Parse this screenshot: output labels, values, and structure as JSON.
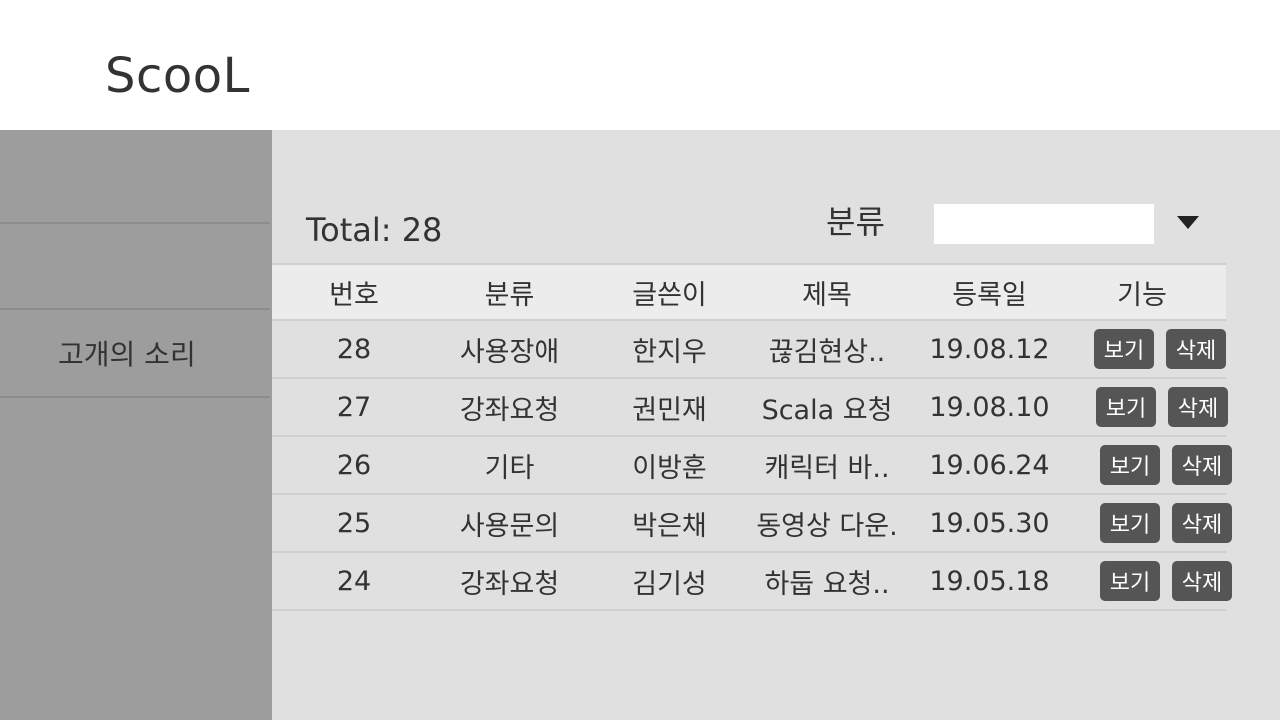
{
  "app": {
    "logo": "ScooL"
  },
  "sidebar": {
    "items": [
      {
        "label": "고개의 소리"
      }
    ]
  },
  "toolbar": {
    "total_label": "Total: 28",
    "filter_label": "분류",
    "filter_value": ""
  },
  "table": {
    "headers": [
      "번호",
      "분류",
      "글쓴이",
      "제목",
      "등록일",
      "기능"
    ],
    "rows": [
      {
        "no": "28",
        "category": "사용장애",
        "author": "한지우",
        "title": "끊김현상..",
        "date": "19.08.12"
      },
      {
        "no": "27",
        "category": "강좌요청",
        "author": "권민재",
        "title": "Scala 요청",
        "date": "19.08.10"
      },
      {
        "no": "26",
        "category": "기타",
        "author": "이방훈",
        "title": "캐릭터 바..",
        "date": "19.06.24"
      },
      {
        "no": "25",
        "category": "사용문의",
        "author": "박은채",
        "title": "동영상 다운.",
        "date": "19.05.30"
      },
      {
        "no": "24",
        "category": "강좌요청",
        "author": "김기성",
        "title": "하둡 요청..",
        "date": "19.05.18"
      }
    ],
    "view_label": "보기",
    "delete_label": "삭제"
  },
  "icons": {
    "dropdown": "triangle-down-icon"
  },
  "colors": {
    "sidebar": "#9d9d9d",
    "main": "#e0e0e0",
    "button": "#555555",
    "header": "#ffffff"
  }
}
